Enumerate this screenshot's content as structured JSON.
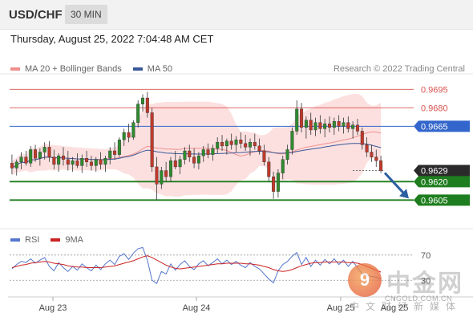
{
  "header": {
    "symbol": "USD/CHF",
    "interval": "30 MIN",
    "datetime": "Thursday, August 25, 2022 7:04:48 AM CET",
    "attribution": "Research © 2022 Trading Central"
  },
  "colors": {
    "ma20": "#f08f8f",
    "ma50": "#3b5998",
    "bands_fill": "#fbd6d6",
    "up": "#2e8b2e",
    "down": "#c0392b",
    "resistance": "#d9534f",
    "support": "#1e7d1e",
    "pivot": "#3366cc",
    "rsi": "#5577cc",
    "rsi_ma": "#cc2222",
    "arrow": "#2b5fa0"
  },
  "chart_data": [
    {
      "type": "candlestick",
      "legend": [
        {
          "label": "MA 20 + Bollinger Bands",
          "color": "#f08f8f"
        },
        {
          "label": "MA 50",
          "color": "#3b5998"
        }
      ],
      "ylim": [
        0.9585,
        0.9705
      ],
      "x_ticks": [
        "Aug 23",
        "Aug 24",
        "Aug 25",
        "Aug 25"
      ],
      "levels": [
        {
          "label": "0.9695",
          "value": 0.9695,
          "kind": "resistance"
        },
        {
          "label": "0.9680",
          "value": 0.968,
          "kind": "resistance"
        },
        {
          "label": "0.9665",
          "value": 0.9665,
          "kind": "pivot"
        },
        {
          "label": "0.9629",
          "value": 0.9629,
          "kind": "last"
        },
        {
          "label": "0.9620",
          "value": 0.962,
          "kind": "support"
        },
        {
          "label": "0.9605",
          "value": 0.9605,
          "kind": "support"
        }
      ],
      "ohlc": [
        [
          0.9635,
          0.9642,
          0.9626,
          0.9631
        ],
        [
          0.9631,
          0.9638,
          0.9625,
          0.9636
        ],
        [
          0.9636,
          0.9644,
          0.963,
          0.964
        ],
        [
          0.964,
          0.9645,
          0.9633,
          0.9635
        ],
        [
          0.9635,
          0.9649,
          0.9632,
          0.9646
        ],
        [
          0.9646,
          0.965,
          0.9636,
          0.9639
        ],
        [
          0.9639,
          0.9647,
          0.9633,
          0.9644
        ],
        [
          0.9644,
          0.9652,
          0.9638,
          0.9648
        ],
        [
          0.9648,
          0.9653,
          0.9636,
          0.964
        ],
        [
          0.964,
          0.9646,
          0.963,
          0.9634
        ],
        [
          0.9634,
          0.9643,
          0.9628,
          0.9641
        ],
        [
          0.9641,
          0.9648,
          0.9633,
          0.9638
        ],
        [
          0.9638,
          0.9645,
          0.9629,
          0.9634
        ],
        [
          0.9634,
          0.964,
          0.9628,
          0.9637
        ],
        [
          0.9637,
          0.9643,
          0.9631,
          0.9633
        ],
        [
          0.9633,
          0.9642,
          0.9627,
          0.9639
        ],
        [
          0.9639,
          0.9645,
          0.9632,
          0.9636
        ],
        [
          0.9636,
          0.9641,
          0.9629,
          0.9633
        ],
        [
          0.9633,
          0.964,
          0.9628,
          0.9638
        ],
        [
          0.9638,
          0.9644,
          0.963,
          0.9634
        ],
        [
          0.9634,
          0.9641,
          0.9628,
          0.9639
        ],
        [
          0.9639,
          0.9648,
          0.9634,
          0.9645
        ],
        [
          0.9645,
          0.9652,
          0.9638,
          0.9642
        ],
        [
          0.9642,
          0.9656,
          0.964,
          0.9654
        ],
        [
          0.9654,
          0.9663,
          0.9649,
          0.966
        ],
        [
          0.966,
          0.9667,
          0.9652,
          0.9656
        ],
        [
          0.9656,
          0.967,
          0.9654,
          0.9668
        ],
        [
          0.9668,
          0.9686,
          0.9664,
          0.9683
        ],
        [
          0.9683,
          0.9691,
          0.9677,
          0.9688
        ],
        [
          0.9688,
          0.9693,
          0.9672,
          0.9676
        ],
        [
          0.9676,
          0.968,
          0.9628,
          0.9632
        ],
        [
          0.9632,
          0.964,
          0.9605,
          0.9618
        ],
        [
          0.9618,
          0.9632,
          0.9614,
          0.9629
        ],
        [
          0.9629,
          0.9636,
          0.962,
          0.9624
        ],
        [
          0.9624,
          0.964,
          0.962,
          0.9637
        ],
        [
          0.9637,
          0.9645,
          0.963,
          0.9632
        ],
        [
          0.9632,
          0.9641,
          0.9626,
          0.9638
        ],
        [
          0.9638,
          0.9648,
          0.9634,
          0.9645
        ],
        [
          0.9645,
          0.965,
          0.9636,
          0.964
        ],
        [
          0.964,
          0.9647,
          0.9631,
          0.9635
        ],
        [
          0.9635,
          0.9644,
          0.963,
          0.9641
        ],
        [
          0.9641,
          0.9649,
          0.9636,
          0.9646
        ],
        [
          0.9646,
          0.9651,
          0.9639,
          0.9642
        ],
        [
          0.9642,
          0.965,
          0.9637,
          0.9647
        ],
        [
          0.9647,
          0.9656,
          0.9643,
          0.9652
        ],
        [
          0.9652,
          0.9658,
          0.9645,
          0.9649
        ],
        [
          0.9649,
          0.9655,
          0.9642,
          0.9653
        ],
        [
          0.9653,
          0.9659,
          0.9646,
          0.965
        ],
        [
          0.965,
          0.9657,
          0.9644,
          0.9654
        ],
        [
          0.9654,
          0.966,
          0.9647,
          0.9651
        ],
        [
          0.9651,
          0.9658,
          0.9645,
          0.9648
        ],
        [
          0.9648,
          0.9655,
          0.9641,
          0.9652
        ],
        [
          0.9652,
          0.9659,
          0.9646,
          0.9649
        ],
        [
          0.9649,
          0.9655,
          0.9642,
          0.9645
        ],
        [
          0.9645,
          0.965,
          0.9633,
          0.9636
        ],
        [
          0.9636,
          0.964,
          0.962,
          0.9624
        ],
        [
          0.9624,
          0.9628,
          0.9606,
          0.9612
        ],
        [
          0.9612,
          0.963,
          0.9607,
          0.9627
        ],
        [
          0.9627,
          0.9641,
          0.9622,
          0.9638
        ],
        [
          0.9638,
          0.965,
          0.9634,
          0.9646
        ],
        [
          0.9646,
          0.9664,
          0.9642,
          0.9661
        ],
        [
          0.9661,
          0.9686,
          0.9658,
          0.9679
        ],
        [
          0.9679,
          0.9684,
          0.966,
          0.9664
        ],
        [
          0.9664,
          0.9673,
          0.9655,
          0.967
        ],
        [
          0.967,
          0.9676,
          0.9658,
          0.9662
        ],
        [
          0.9662,
          0.9672,
          0.9657,
          0.9668
        ],
        [
          0.9668,
          0.9674,
          0.9659,
          0.9663
        ],
        [
          0.9663,
          0.9671,
          0.9656,
          0.9667
        ],
        [
          0.9667,
          0.9673,
          0.966,
          0.9664
        ],
        [
          0.9664,
          0.9672,
          0.9658,
          0.9669
        ],
        [
          0.9669,
          0.9674,
          0.9661,
          0.9665
        ],
        [
          0.9665,
          0.9672,
          0.9659,
          0.9668
        ],
        [
          0.9668,
          0.9673,
          0.966,
          0.9663
        ],
        [
          0.9663,
          0.9669,
          0.9655,
          0.9666
        ],
        [
          0.9666,
          0.9671,
          0.9658,
          0.9661
        ],
        [
          0.9661,
          0.9664,
          0.9646,
          0.965
        ],
        [
          0.965,
          0.9656,
          0.964,
          0.9644
        ],
        [
          0.9644,
          0.965,
          0.9636,
          0.964
        ],
        [
          0.964,
          0.9646,
          0.9632,
          0.9637
        ],
        [
          0.9637,
          0.9641,
          0.9627,
          0.9629
        ]
      ],
      "projection": {
        "from": 0.9629,
        "to": 0.9605
      }
    },
    {
      "type": "line",
      "legend": [
        {
          "label": "RSI",
          "color": "#5577cc"
        },
        {
          "label": "9MA",
          "color": "#cc2222"
        }
      ],
      "ylim": [
        10,
        85
      ],
      "reference_levels": [
        {
          "label": "70",
          "value": 70
        },
        {
          "label": "30",
          "value": 30
        }
      ],
      "rsi": [
        48,
        55,
        60,
        58,
        64,
        57,
        62,
        66,
        52,
        45,
        58,
        50,
        44,
        52,
        46,
        56,
        50,
        45,
        54,
        47,
        56,
        62,
        55,
        68,
        72,
        63,
        73,
        80,
        82,
        62,
        30,
        25,
        44,
        40,
        56,
        46,
        55,
        61,
        52,
        47,
        56,
        61,
        53,
        58,
        64,
        56,
        62,
        55,
        60,
        54,
        50,
        58,
        52,
        48,
        40,
        32,
        26,
        45,
        55,
        60,
        68,
        74,
        55,
        66,
        52,
        62,
        54,
        63,
        56,
        64,
        55,
        62,
        52,
        60,
        50,
        40,
        38,
        36,
        35,
        32
      ],
      "rsi_ma": [
        50,
        52,
        54,
        55,
        57,
        58,
        59,
        60,
        59,
        57,
        56,
        55,
        53,
        52,
        51,
        51,
        50,
        50,
        50,
        50,
        51,
        52,
        53,
        55,
        57,
        59,
        61,
        64,
        67,
        69,
        66,
        62,
        58,
        54,
        51,
        49,
        48,
        49,
        50,
        51,
        52,
        53,
        54,
        55,
        56,
        56,
        57,
        57,
        57,
        57,
        56,
        56,
        55,
        54,
        52,
        50,
        47,
        45,
        44,
        45,
        47,
        50,
        53,
        55,
        57,
        58,
        58,
        59,
        59,
        59,
        59,
        59,
        58,
        58,
        57,
        55,
        52,
        49,
        46,
        43
      ]
    }
  ]
}
